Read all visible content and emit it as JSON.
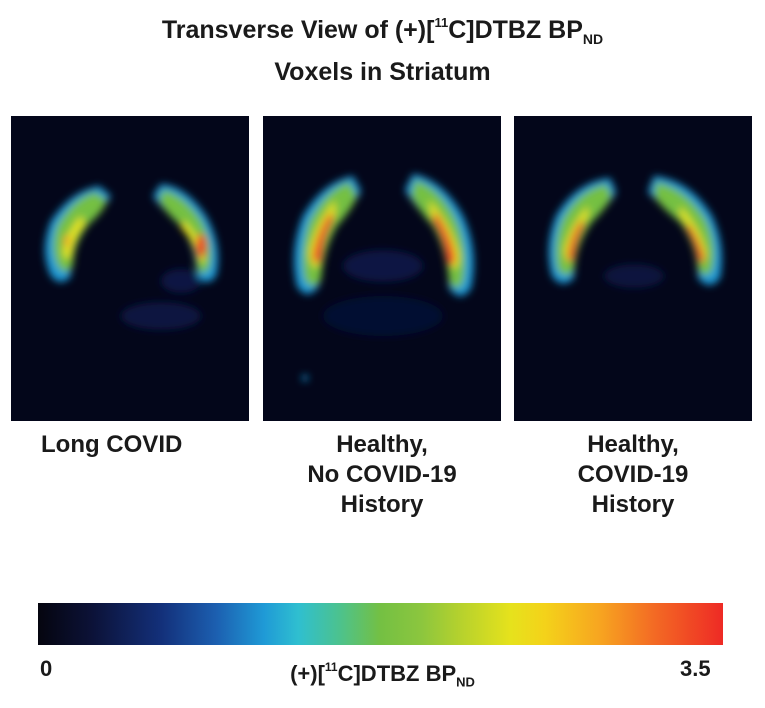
{
  "title": {
    "line1_prefix": "Transverse View of (+)[",
    "line1_sup": "11",
    "line1_mid": "C]DTBZ BP",
    "line1_sub": "ND",
    "line2": "Voxels in Striatum"
  },
  "panels": [
    {
      "label_lines": [
        "Long COVID"
      ]
    },
    {
      "label_lines": [
        "Healthy,",
        "No COVID-19",
        "History"
      ]
    },
    {
      "label_lines": [
        "Healthy,",
        "COVID-19",
        "History"
      ]
    }
  ],
  "colorbar": {
    "min": "0",
    "max": "3.5",
    "label_prefix": "(+)[",
    "label_sup": "11",
    "label_mid": "C]DTBZ BP",
    "label_sub": "ND",
    "colors": [
      "#05050f",
      "#13307a",
      "#1f9ad6",
      "#74c043",
      "#e6e21c",
      "#f7a520",
      "#ee2a25"
    ]
  }
}
